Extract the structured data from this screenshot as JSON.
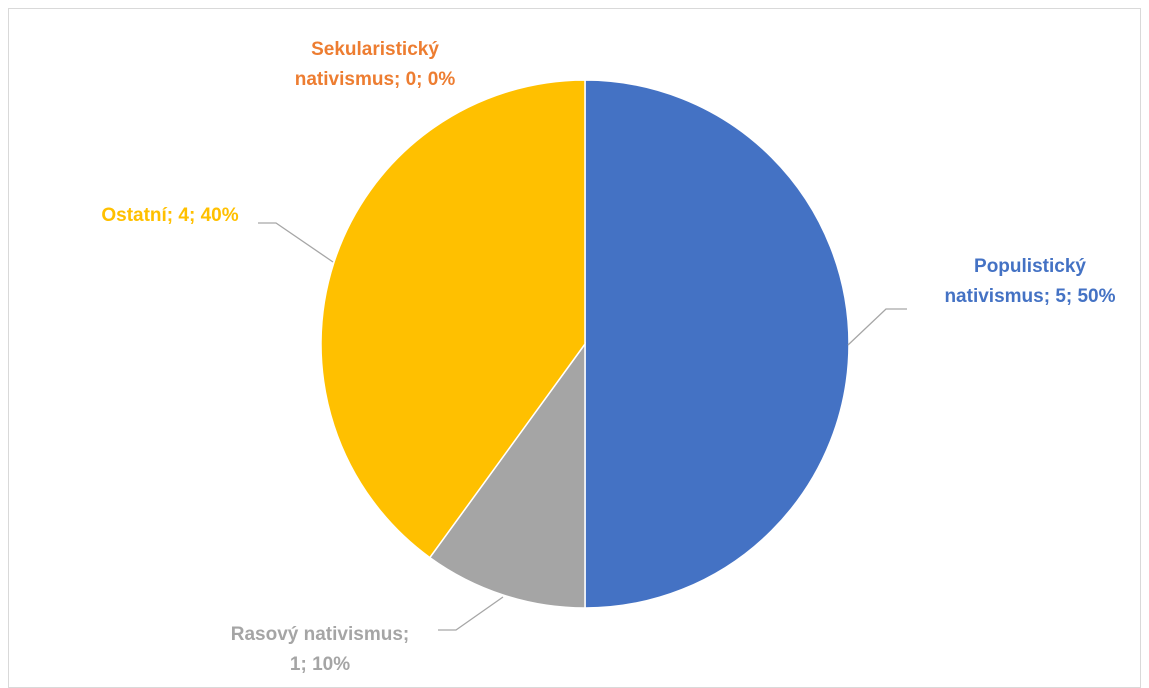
{
  "chart_data": {
    "type": "pie",
    "title": "",
    "start_angle_deg": 0,
    "direction": "clockwise",
    "slices": [
      {
        "name": "Populistický nativismus",
        "value": 5,
        "percent": "50%",
        "color": "#4472c4",
        "label_lines": [
          "Populistický",
          "nativismus; 5; 50%"
        ]
      },
      {
        "name": "Rasový nativismus",
        "value": 1,
        "percent": "10%",
        "color": "#a5a5a5",
        "label_lines": [
          "Rasový nativismus;",
          "1; 10%"
        ]
      },
      {
        "name": "Ostatní",
        "value": 4,
        "percent": "40%",
        "color": "#ffc000",
        "label_lines": [
          "Ostatní; 4; 40%"
        ]
      },
      {
        "name": "Sekularistický nativismus",
        "value": 0,
        "percent": "0%",
        "color": "#ed7d31",
        "label_lines": [
          "Sekularistický",
          "nativismus; 0; 0%"
        ]
      }
    ],
    "legend": "none",
    "leader_line_color": "#a6a6a6"
  }
}
